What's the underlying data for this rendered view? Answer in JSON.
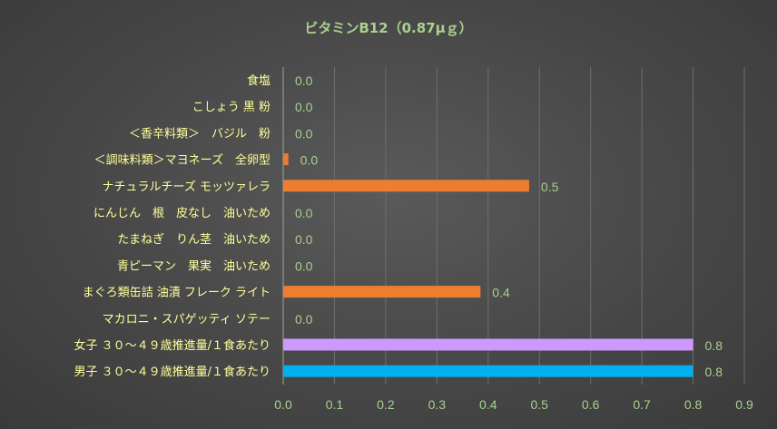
{
  "chart_data": {
    "type": "bar",
    "orientation": "horizontal",
    "title": "ビタミンB12（0.87μｇ）",
    "categories": [
      "食塩",
      "こしょう 黒 粉",
      "＜香辛料類＞　バジル　粉",
      "＜調味料類＞マヨネーズ　全卵型",
      "ナチュラルチーズ モッツァレラ",
      "にんじん　根　皮なし　油いため",
      "たまねぎ　りん茎　油いため",
      "青ピーマン　果実　油いため",
      "まぐろ類缶詰 油漬 フレーク ライト",
      "マカロニ・スパゲッティ ソテー",
      "女子 ３０～４９歳推進量/１食あたり",
      "男子 ３０～４９歳推進量/１食あたり"
    ],
    "values": [
      0.0,
      0.0,
      0.0,
      0.01,
      0.48,
      0.0,
      0.0,
      0.0,
      0.385,
      0.0,
      0.8,
      0.8
    ],
    "value_labels": [
      "0.0",
      "0.0",
      "0.0",
      "0.0",
      "0.5",
      "0.0",
      "0.0",
      "0.0",
      "0.4",
      "0.0",
      "0.8",
      "0.8"
    ],
    "bar_colors": [
      "#ed7d31",
      "#ed7d31",
      "#ed7d31",
      "#ed7d31",
      "#ed7d31",
      "#ed7d31",
      "#ed7d31",
      "#ed7d31",
      "#ed7d31",
      "#ed7d31",
      "#cc99ff",
      "#00b0f0"
    ],
    "xlim": [
      0,
      0.9
    ],
    "x_ticks": [
      "0.0",
      "0.1",
      "0.2",
      "0.3",
      "0.4",
      "0.5",
      "0.6",
      "0.7",
      "0.8",
      "0.9"
    ],
    "grid": "vertical",
    "legend": "none"
  }
}
